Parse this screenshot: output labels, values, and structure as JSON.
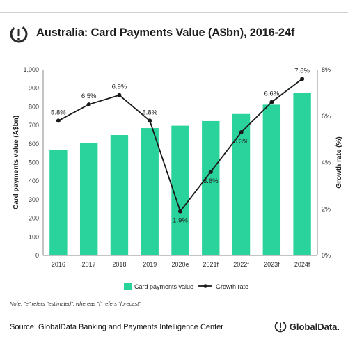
{
  "header": {
    "title": "Australia: Card Payments Value (A$bn), 2016-24f"
  },
  "footer": {
    "note": "Note: \"e\" refers \"estimated\", whereas \"f\" refers \"forecast\"",
    "source": "Source: GlobalData Banking and Payments Intelligence Center",
    "brand": "GlobalData."
  },
  "colors": {
    "bar": "#2ad39b",
    "line": "#1a1a1a",
    "axis": "#8a8a8a"
  },
  "chart_data": {
    "type": "bar",
    "categories": [
      "2016",
      "2017",
      "2018",
      "2019",
      "2020e",
      "2021f",
      "2022f",
      "2023f",
      "2024f"
    ],
    "series": [
      {
        "name": "Card payments value",
        "type": "bar",
        "axis": "left",
        "values": [
          569.3,
          606.2,
          647.9,
          685.2,
          698.0,
          723.1,
          761.3,
          811.4,
          872.9
        ],
        "labels": [
          "569.3",
          "606.2",
          "647.9",
          "685.2",
          "698.0",
          "723.1",
          "761.3",
          "811.4",
          "872.9"
        ]
      },
      {
        "name": "Growth rate",
        "type": "line",
        "axis": "right",
        "values": [
          5.8,
          6.5,
          6.9,
          5.8,
          1.9,
          3.6,
          5.3,
          6.6,
          7.6
        ],
        "labels": [
          "5.8%",
          "6.5%",
          "6.9%",
          "5.8%",
          "1.9%",
          "3.6%",
          "5.3%",
          "6.6%",
          "7.6%"
        ]
      }
    ],
    "ylabel": "Card payments value (A$bn)",
    "ylabel_right": "Growth rate (%)",
    "ylim": [
      0,
      1000
    ],
    "ylim_right": [
      0,
      8
    ],
    "yticks": [
      "0",
      "100",
      "200",
      "300",
      "400",
      "500",
      "600",
      "700",
      "800",
      "900",
      "1,000"
    ],
    "yticks_right": [
      "0%",
      "2%",
      "4%",
      "6%",
      "8%"
    ],
    "grid": false,
    "legend_position": "bottom"
  }
}
